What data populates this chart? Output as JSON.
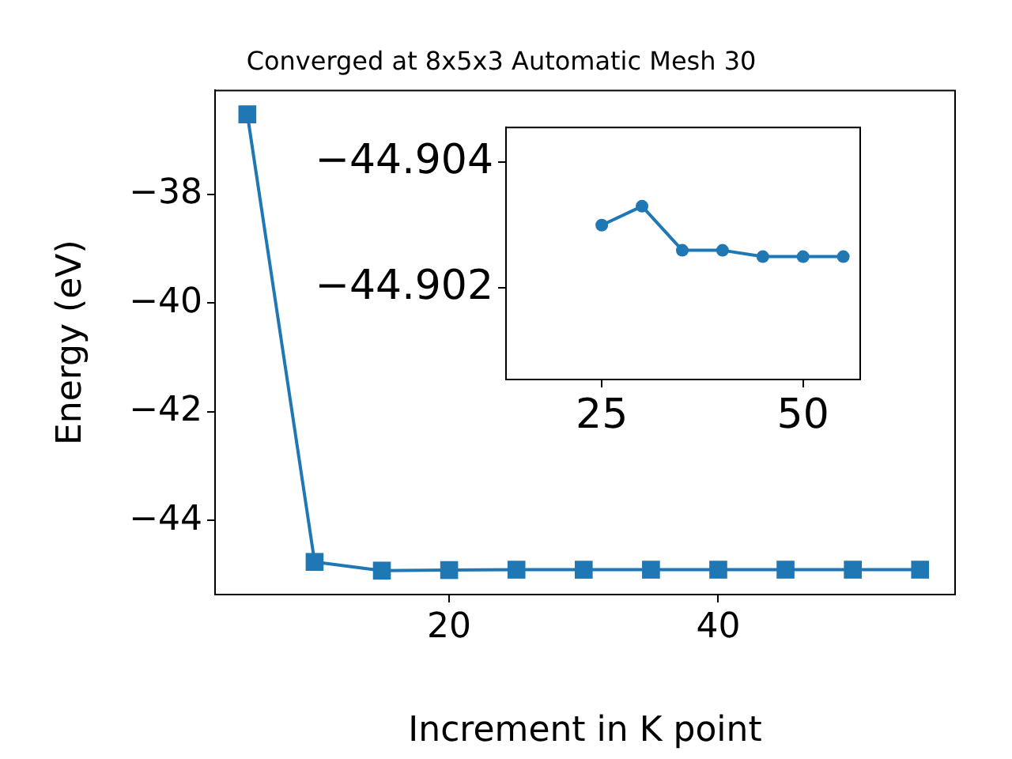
{
  "chart_data": [
    {
      "type": "line",
      "title": "Converged at 8x5x3 Automatic Mesh 30",
      "xlabel": "Increment in K point",
      "ylabel": "Energy (eV)",
      "x": [
        5,
        10,
        15,
        20,
        25,
        30,
        35,
        40,
        45,
        50,
        55
      ],
      "series": [
        {
          "color": "#1f77b4",
          "values": [
            -36.53,
            -44.76,
            -44.92,
            -44.91,
            -44.903,
            -44.9033,
            -44.9026,
            -44.9026,
            -44.9025,
            -44.9025,
            -44.9025
          ]
        }
      ],
      "marker": "square",
      "line_style": "solid",
      "xlim": [
        2.6,
        57.6
      ],
      "xticks": [
        20,
        40
      ],
      "ylim": [
        -45.36,
        -36.09
      ],
      "yticks": [
        {
          "value": -44,
          "label": "−44"
        },
        {
          "value": -42,
          "label": "−42"
        },
        {
          "value": -40,
          "label": "−40"
        },
        {
          "value": -38,
          "label": "−38"
        }
      ]
    },
    {
      "type": "line",
      "x": [
        25,
        30,
        35,
        40,
        45,
        50,
        55
      ],
      "series": [
        {
          "color": "#1f77b4",
          "values": [
            -44.903,
            -44.9033,
            -44.9026,
            -44.9026,
            -44.9025,
            -44.9025,
            -44.9025
          ]
        }
      ],
      "marker": "circle",
      "line_style": "solid",
      "xlim": [
        13.1,
        57.1
      ],
      "xticks": [
        25,
        50
      ],
      "ylim": [
        -44.90055,
        -44.90455
      ],
      "yticks": [
        {
          "value": -44.904,
          "label": "−44.904"
        },
        {
          "value": -44.902,
          "label": "−44.902"
        }
      ]
    }
  ]
}
